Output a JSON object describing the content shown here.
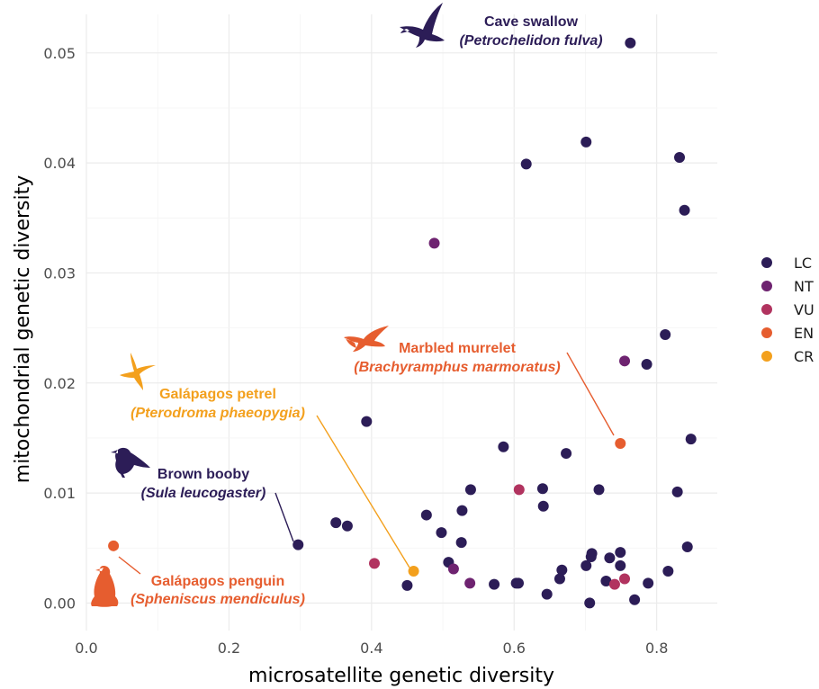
{
  "chart_data": {
    "type": "scatter",
    "xlabel": "microsatellite genetic diversity",
    "ylabel": "mitochondrial genetic diversity",
    "xlim": [
      0,
      0.885
    ],
    "ylim": [
      -0.0025,
      0.0535
    ],
    "x_ticks": [
      0.0,
      0.2,
      0.4,
      0.6,
      0.8
    ],
    "x_tick_labels": [
      "0.0",
      "0.2",
      "0.4",
      "0.6",
      "0.8"
    ],
    "y_ticks": [
      0.0,
      0.01,
      0.02,
      0.03,
      0.04,
      0.05
    ],
    "y_tick_labels": [
      "0.00",
      "0.01",
      "0.02",
      "0.03",
      "0.04",
      "0.05"
    ],
    "grid": true,
    "legend_position": "right",
    "categories": [
      {
        "code": "LC",
        "color": "#2c1d57"
      },
      {
        "code": "NT",
        "color": "#6e2370"
      },
      {
        "code": "VU",
        "color": "#b1335f"
      },
      {
        "code": "EN",
        "color": "#e65d2f"
      },
      {
        "code": "CR",
        "color": "#f3a01d"
      }
    ],
    "points": [
      {
        "x": 0.763,
        "y": 0.0509,
        "c": "LC"
      },
      {
        "x": 0.701,
        "y": 0.0419,
        "c": "LC"
      },
      {
        "x": 0.617,
        "y": 0.0399,
        "c": "LC"
      },
      {
        "x": 0.832,
        "y": 0.0405,
        "c": "LC"
      },
      {
        "x": 0.839,
        "y": 0.0357,
        "c": "LC"
      },
      {
        "x": 0.812,
        "y": 0.0244,
        "c": "LC"
      },
      {
        "x": 0.786,
        "y": 0.0217,
        "c": "LC"
      },
      {
        "x": 0.393,
        "y": 0.0165,
        "c": "LC"
      },
      {
        "x": 0.585,
        "y": 0.0142,
        "c": "LC"
      },
      {
        "x": 0.673,
        "y": 0.0136,
        "c": "LC"
      },
      {
        "x": 0.848,
        "y": 0.0149,
        "c": "LC"
      },
      {
        "x": 0.64,
        "y": 0.0104,
        "c": "LC"
      },
      {
        "x": 0.539,
        "y": 0.0103,
        "c": "LC"
      },
      {
        "x": 0.719,
        "y": 0.0103,
        "c": "LC"
      },
      {
        "x": 0.829,
        "y": 0.0101,
        "c": "LC"
      },
      {
        "x": 0.641,
        "y": 0.0088,
        "c": "LC"
      },
      {
        "x": 0.527,
        "y": 0.0084,
        "c": "LC"
      },
      {
        "x": 0.477,
        "y": 0.008,
        "c": "LC"
      },
      {
        "x": 0.35,
        "y": 0.0073,
        "c": "LC"
      },
      {
        "x": 0.366,
        "y": 0.007,
        "c": "LC"
      },
      {
        "x": 0.498,
        "y": 0.0064,
        "c": "LC"
      },
      {
        "x": 0.297,
        "y": 0.0053,
        "c": "LC"
      },
      {
        "x": 0.526,
        "y": 0.0055,
        "c": "LC"
      },
      {
        "x": 0.843,
        "y": 0.0051,
        "c": "LC"
      },
      {
        "x": 0.709,
        "y": 0.0045,
        "c": "LC"
      },
      {
        "x": 0.749,
        "y": 0.0046,
        "c": "LC"
      },
      {
        "x": 0.708,
        "y": 0.0042,
        "c": "LC"
      },
      {
        "x": 0.734,
        "y": 0.0041,
        "c": "LC"
      },
      {
        "x": 0.508,
        "y": 0.0037,
        "c": "LC"
      },
      {
        "x": 0.701,
        "y": 0.0034,
        "c": "LC"
      },
      {
        "x": 0.749,
        "y": 0.0034,
        "c": "LC"
      },
      {
        "x": 0.667,
        "y": 0.003,
        "c": "LC"
      },
      {
        "x": 0.816,
        "y": 0.0029,
        "c": "LC"
      },
      {
        "x": 0.664,
        "y": 0.0022,
        "c": "LC"
      },
      {
        "x": 0.729,
        "y": 0.002,
        "c": "LC"
      },
      {
        "x": 0.788,
        "y": 0.0018,
        "c": "LC"
      },
      {
        "x": 0.572,
        "y": 0.0017,
        "c": "LC"
      },
      {
        "x": 0.603,
        "y": 0.0018,
        "c": "LC"
      },
      {
        "x": 0.606,
        "y": 0.0018,
        "c": "LC"
      },
      {
        "x": 0.45,
        "y": 0.0016,
        "c": "LC"
      },
      {
        "x": 0.646,
        "y": 0.0008,
        "c": "LC"
      },
      {
        "x": 0.769,
        "y": 0.0003,
        "c": "LC"
      },
      {
        "x": 0.706,
        "y": 0.0,
        "c": "LC"
      },
      {
        "x": 0.488,
        "y": 0.0327,
        "c": "NT"
      },
      {
        "x": 0.755,
        "y": 0.022,
        "c": "NT"
      },
      {
        "x": 0.515,
        "y": 0.0031,
        "c": "NT"
      },
      {
        "x": 0.538,
        "y": 0.0018,
        "c": "NT"
      },
      {
        "x": 0.607,
        "y": 0.0103,
        "c": "VU"
      },
      {
        "x": 0.404,
        "y": 0.0036,
        "c": "VU"
      },
      {
        "x": 0.755,
        "y": 0.0022,
        "c": "VU"
      },
      {
        "x": 0.741,
        "y": 0.0017,
        "c": "VU"
      },
      {
        "x": 0.749,
        "y": 0.0145,
        "c": "EN"
      },
      {
        "x": 0.038,
        "y": 0.0052,
        "c": "EN"
      },
      {
        "x": 0.459,
        "y": 0.0029,
        "c": "CR"
      }
    ],
    "annotations": [
      {
        "name": "Cave swallow",
        "scientific": "(Petrochelidon fulva)",
        "c": "LC"
      },
      {
        "name": "Marbled murrelet",
        "scientific": "(Brachyramphus marmoratus)",
        "c": "EN"
      },
      {
        "name": "Galápagos petrel",
        "scientific": "(Pterodroma phaeopygia)",
        "c": "CR"
      },
      {
        "name": "Brown booby",
        "scientific": "(Sula leucogaster)",
        "c": "LC"
      },
      {
        "name": "Galápagos penguin",
        "scientific": "(Spheniscus mendiculus)",
        "c": "EN"
      }
    ]
  }
}
